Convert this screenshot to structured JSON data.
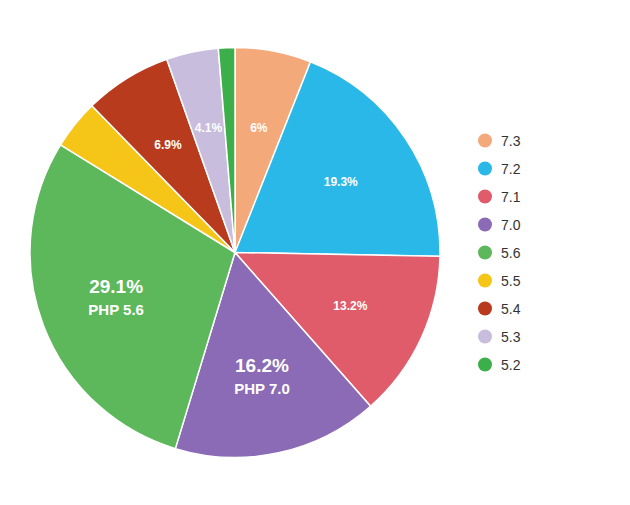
{
  "chart_data": {
    "type": "pie",
    "categories": [
      "7.3",
      "7.2",
      "7.1",
      "7.0",
      "5.6",
      "5.5",
      "5.4",
      "5.3",
      "5.2"
    ],
    "values": [
      6.0,
      19.3,
      13.2,
      16.2,
      29.1,
      3.9,
      6.9,
      4.1,
      1.3
    ],
    "value_labels": [
      "6%",
      "19.3%",
      "13.2%",
      "16.2%",
      "29.1%",
      null,
      "6.9%",
      "4.1%",
      null
    ],
    "colors": [
      "#F4A97B",
      "#29B8E8",
      "#E05C6A",
      "#8B6BB5",
      "#5DB85C",
      "#F5C518",
      "#B83B1E",
      "#C8BDDD",
      "#3DAF4A"
    ],
    "annotations": [
      {
        "label": "PHP 7.0",
        "category": "7.0"
      },
      {
        "label": "PHP 5.6",
        "category": "5.6"
      }
    ],
    "data_labels": true,
    "legend": "right"
  }
}
